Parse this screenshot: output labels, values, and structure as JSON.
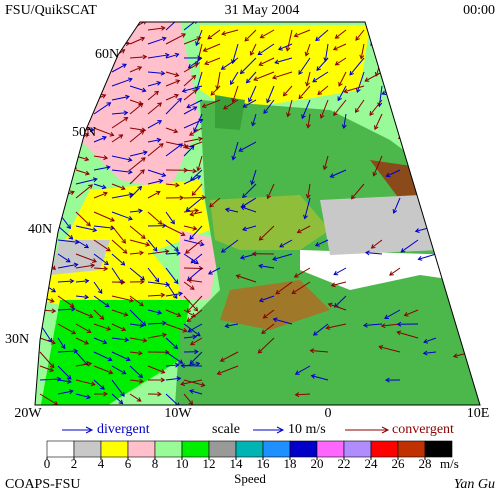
{
  "header": {
    "left": "FSU/QuikSCAT",
    "center": "31 May 2004",
    "right": "00:00"
  },
  "map": {
    "lat_labels": [
      "60N",
      "50N",
      "40N",
      "30N"
    ],
    "lon_labels": [
      "20W",
      "10W",
      "0",
      "10E"
    ]
  },
  "legend": {
    "divergent": "divergent",
    "scale": "scale",
    "scale_value": "10 m/s",
    "convergent": "convergent"
  },
  "colorbar": {
    "ticks": [
      0,
      2,
      4,
      6,
      8,
      10,
      12,
      14,
      16,
      18,
      20,
      22,
      24,
      26,
      28
    ],
    "unit": "m/s",
    "label": "Speed",
    "colors": [
      "#ffffff",
      "#c8c8c8",
      "#ffff00",
      "#ffc0cb",
      "#98fb98",
      "#00ee00",
      "#999999",
      "#00b4b4",
      "#1e90ff",
      "#0000c8",
      "#ff66ff",
      "#b08cff",
      "#ff0000",
      "#c03000",
      "#000000"
    ]
  },
  "footer": {
    "left": "COAPS-FSU",
    "right": "Yan Gu"
  }
}
